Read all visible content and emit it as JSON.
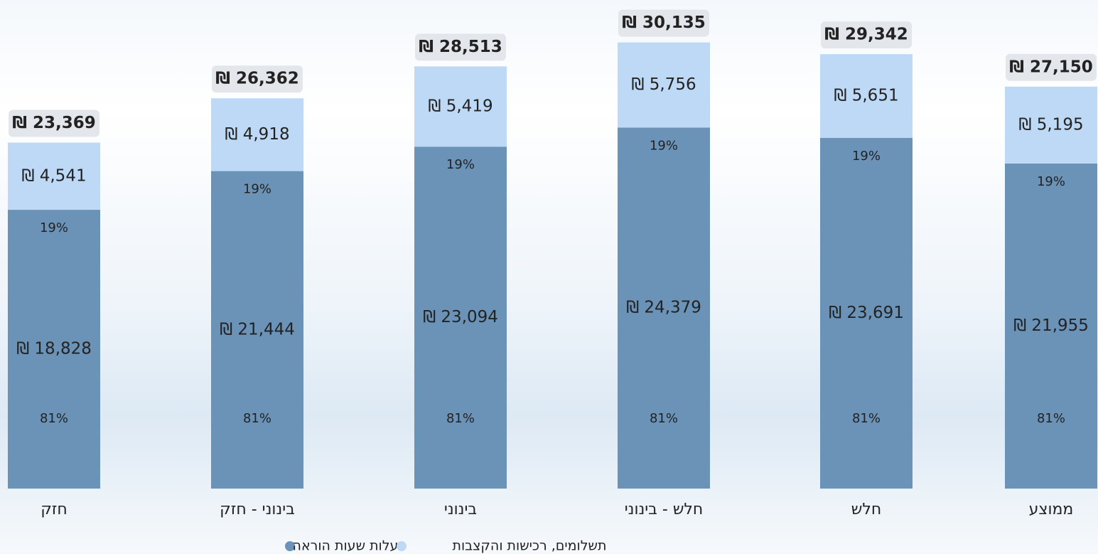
{
  "chart_data": {
    "type": "stacked_bar",
    "categories": [
      "חזק",
      "בינוני - חזק",
      "בינוני",
      "חלש - בינוני",
      "חלש",
      "ממוצע"
    ],
    "series": [
      {
        "name": "עלות שעות הוראה",
        "color": "#6b93b7",
        "values": [
          18828,
          21444,
          23094,
          24379,
          23691,
          21955
        ],
        "value_labels": [
          "₪ 18,828",
          "₪ 21,444",
          "₪ 23,094",
          "₪ 24,379",
          "₪ 23,691",
          "₪ 21,955"
        ],
        "shares": [
          81,
          81,
          81,
          81,
          81,
          81
        ],
        "share_labels": [
          "81%",
          "81%",
          "81%",
          "81%",
          "81%",
          "81%"
        ]
      },
      {
        "name": "תשלומים, רכישות והקצבות",
        "color": "#bdd9f5",
        "values": [
          4541,
          4918,
          5419,
          5756,
          5651,
          5195
        ],
        "value_labels": [
          "₪ 4,541",
          "₪ 4,918",
          "₪ 5,419",
          "₪ 5,756",
          "₪ 5,651",
          "₪ 5,195"
        ],
        "shares": [
          19,
          19,
          19,
          19,
          19,
          19
        ],
        "share_labels": [
          "19%",
          "19%",
          "19%",
          "19%",
          "19%",
          "19%"
        ]
      }
    ],
    "totals": [
      23369,
      26362,
      28513,
      30135,
      29342,
      27150
    ],
    "total_labels": [
      "₪ 23,369",
      "₪ 26,362",
      "₪ 28,513",
      "₪ 30,135",
      "₪ 29,342",
      "₪ 27,150"
    ],
    "ylim": [
      0,
      33000
    ],
    "legend": "bottom"
  }
}
